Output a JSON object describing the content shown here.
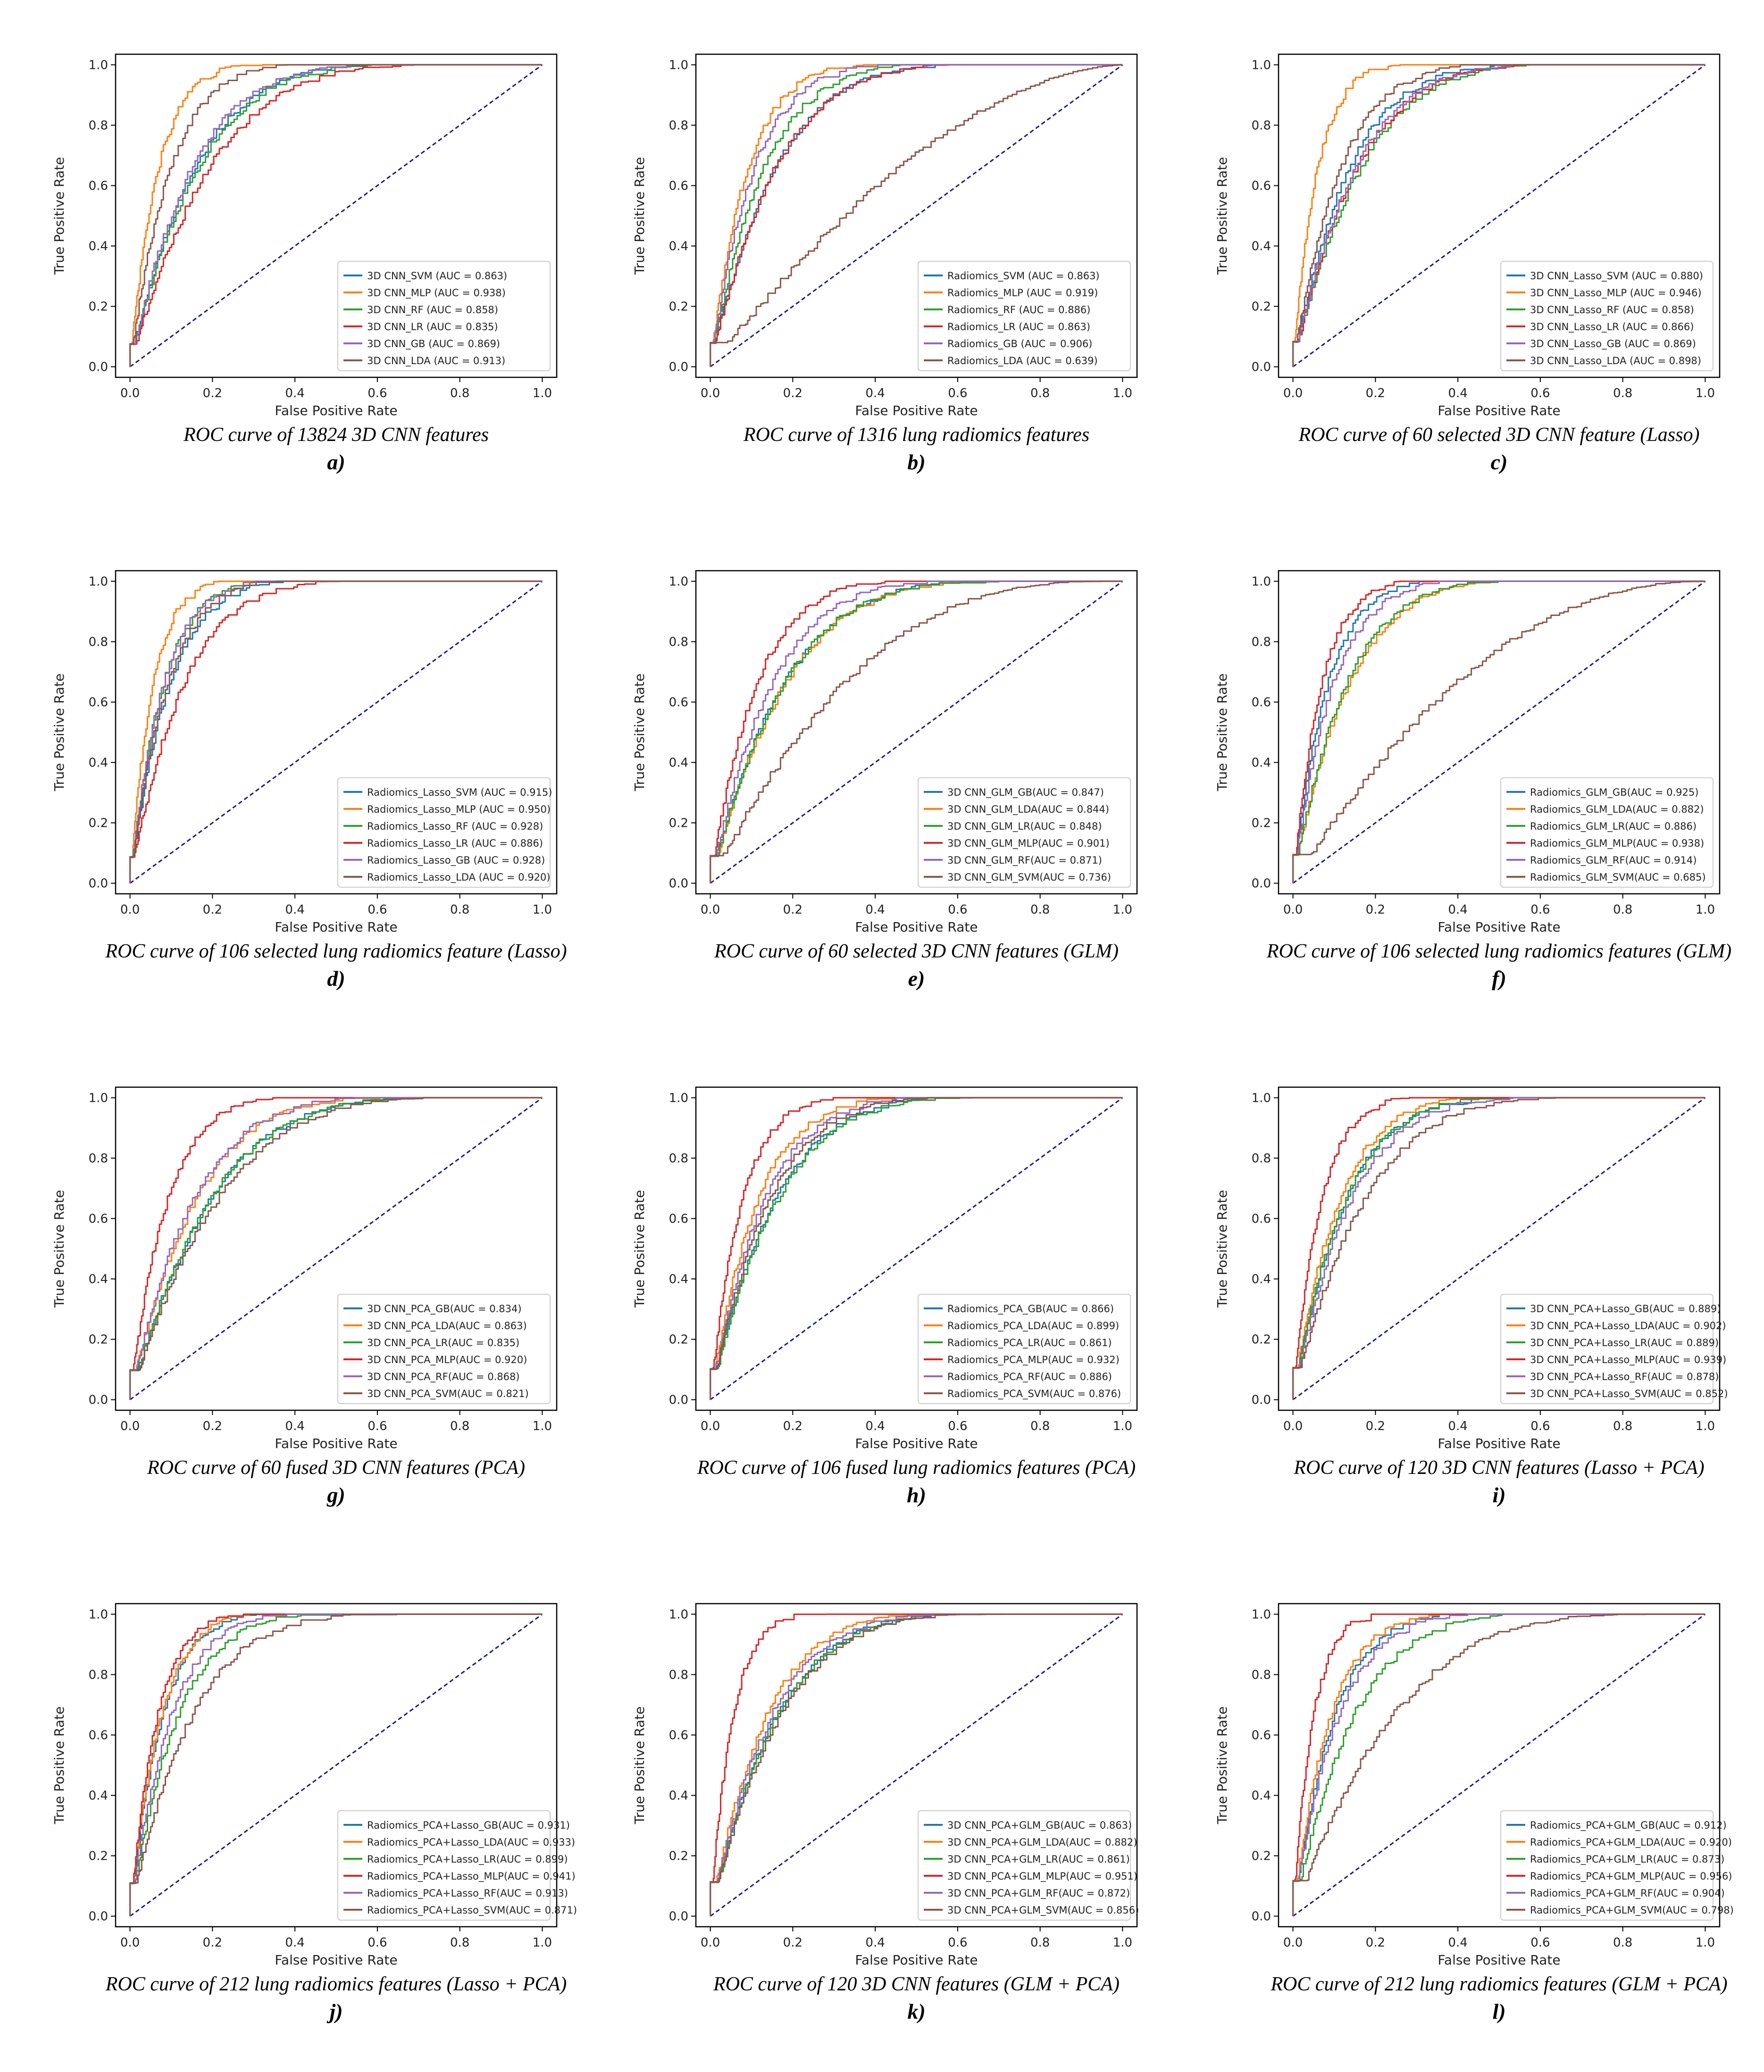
{
  "colors": {
    "blue": "#1f77b4",
    "orange": "#ff7f0e",
    "green": "#2ca02c",
    "red": "#d62728",
    "purple": "#9467bd",
    "brown": "#8c564b",
    "diagonal": "#1a1a8c"
  },
  "axis_common": {
    "xlabel": "False Positive Rate",
    "ylabel": "True Positive Rate",
    "ticks": [
      "0.0",
      "0.2",
      "0.4",
      "0.6",
      "0.8",
      "1.0"
    ],
    "xlim": [
      0,
      1
    ],
    "ylim": [
      0,
      1
    ]
  },
  "chart_data": [
    {
      "type": "line",
      "panel": "a)",
      "caption": "ROC curve of 13824 3D CNN features",
      "series": [
        {
          "name": "3D CNN_SVM (AUC = 0.863)",
          "color": "blue",
          "auc": 0.863
        },
        {
          "name": "3D CNN_MLP (AUC = 0.938)",
          "color": "orange",
          "auc": 0.938
        },
        {
          "name": "3D CNN_RF (AUC = 0.858)",
          "color": "green",
          "auc": 0.858
        },
        {
          "name": "3D CNN_LR (AUC = 0.835)",
          "color": "red",
          "auc": 0.835
        },
        {
          "name": "3D CNN_GB (AUC = 0.869)",
          "color": "purple",
          "auc": 0.869
        },
        {
          "name": "3D CNN_LDA (AUC = 0.913)",
          "color": "brown",
          "auc": 0.913
        }
      ]
    },
    {
      "type": "line",
      "panel": "b)",
      "caption": "ROC curve of 1316 lung radiomics features",
      "series": [
        {
          "name": "Radiomics_SVM (AUC = 0.863)",
          "color": "blue",
          "auc": 0.863
        },
        {
          "name": "Radiomics_MLP (AUC = 0.919)",
          "color": "orange",
          "auc": 0.919
        },
        {
          "name": "Radiomics_RF (AUC = 0.886)",
          "color": "green",
          "auc": 0.886
        },
        {
          "name": "Radiomics_LR (AUC = 0.863)",
          "color": "red",
          "auc": 0.863
        },
        {
          "name": "Radiomics_GB (AUC = 0.906)",
          "color": "purple",
          "auc": 0.906
        },
        {
          "name": "Radiomics_LDA (AUC = 0.639)",
          "color": "brown",
          "auc": 0.639
        }
      ]
    },
    {
      "type": "line",
      "panel": "c)",
      "caption": "ROC curve of 60 selected 3D CNN feature (Lasso)",
      "series": [
        {
          "name": "3D CNN_Lasso_SVM (AUC = 0.880)",
          "color": "blue",
          "auc": 0.88
        },
        {
          "name": "3D CNN_Lasso_MLP (AUC = 0.946)",
          "color": "orange",
          "auc": 0.946
        },
        {
          "name": "3D CNN_Lasso_RF (AUC = 0.858)",
          "color": "green",
          "auc": 0.858
        },
        {
          "name": "3D CNN_Lasso_LR (AUC = 0.866)",
          "color": "red",
          "auc": 0.866
        },
        {
          "name": "3D CNN_Lasso_GB (AUC = 0.869)",
          "color": "purple",
          "auc": 0.869
        },
        {
          "name": "3D CNN_Lasso_LDA (AUC = 0.898)",
          "color": "brown",
          "auc": 0.898
        }
      ]
    },
    {
      "type": "line",
      "panel": "d)",
      "caption": "ROC curve of 106 selected lung radiomics feature (Lasso)",
      "series": [
        {
          "name": "Radiomics_Lasso_SVM (AUC = 0.915)",
          "color": "blue",
          "auc": 0.915
        },
        {
          "name": "Radiomics_Lasso_MLP (AUC = 0.950)",
          "color": "orange",
          "auc": 0.95
        },
        {
          "name": "Radiomics_Lasso_RF (AUC = 0.928)",
          "color": "green",
          "auc": 0.928
        },
        {
          "name": "Radiomics_Lasso_LR (AUC = 0.886)",
          "color": "red",
          "auc": 0.886
        },
        {
          "name": "Radiomics_Lasso_GB (AUC = 0.928)",
          "color": "purple",
          "auc": 0.928
        },
        {
          "name": "Radiomics_Lasso_LDA (AUC = 0.920)",
          "color": "brown",
          "auc": 0.92
        }
      ]
    },
    {
      "type": "line",
      "panel": "e)",
      "caption": "ROC curve of 60 selected 3D CNN  features (GLM)",
      "series": [
        {
          "name": "3D CNN_GLM_GB(AUC = 0.847)",
          "color": "blue",
          "auc": 0.847
        },
        {
          "name": "3D CNN_GLM_LDA(AUC = 0.844)",
          "color": "orange",
          "auc": 0.844
        },
        {
          "name": "3D CNN_GLM_LR(AUC = 0.848)",
          "color": "green",
          "auc": 0.848
        },
        {
          "name": "3D CNN_GLM_MLP(AUC = 0.901)",
          "color": "red",
          "auc": 0.901
        },
        {
          "name": "3D CNN_GLM_RF(AUC = 0.871)",
          "color": "purple",
          "auc": 0.871
        },
        {
          "name": "3D CNN_GLM_SVM(AUC = 0.736)",
          "color": "brown",
          "auc": 0.736
        }
      ]
    },
    {
      "type": "line",
      "panel": "f)",
      "caption": "ROC curve of 106 selected lung radiomics  features (GLM)",
      "series": [
        {
          "name": "Radiomics_GLM_GB(AUC = 0.925)",
          "color": "blue",
          "auc": 0.925
        },
        {
          "name": "Radiomics_GLM_LDA(AUC = 0.882)",
          "color": "orange",
          "auc": 0.882
        },
        {
          "name": "Radiomics_GLM_LR(AUC = 0.886)",
          "color": "green",
          "auc": 0.886
        },
        {
          "name": "Radiomics_GLM_MLP(AUC = 0.938)",
          "color": "red",
          "auc": 0.938
        },
        {
          "name": "Radiomics_GLM_RF(AUC = 0.914)",
          "color": "purple",
          "auc": 0.914
        },
        {
          "name": "Radiomics_GLM_SVM(AUC = 0.685)",
          "color": "brown",
          "auc": 0.685
        }
      ]
    },
    {
      "type": "line",
      "panel": "g)",
      "caption": "ROC curve of 60 fused 3D CNN  features (PCA)",
      "series": [
        {
          "name": "3D CNN_PCA_GB(AUC = 0.834)",
          "color": "blue",
          "auc": 0.834
        },
        {
          "name": "3D CNN_PCA_LDA(AUC = 0.863)",
          "color": "orange",
          "auc": 0.863
        },
        {
          "name": "3D CNN_PCA_LR(AUC = 0.835)",
          "color": "green",
          "auc": 0.835
        },
        {
          "name": "3D CNN_PCA_MLP(AUC = 0.920)",
          "color": "red",
          "auc": 0.92
        },
        {
          "name": "3D CNN_PCA_RF(AUC = 0.868)",
          "color": "purple",
          "auc": 0.868
        },
        {
          "name": "3D CNN_PCA_SVM(AUC = 0.821)",
          "color": "brown",
          "auc": 0.821
        }
      ]
    },
    {
      "type": "line",
      "panel": "h)",
      "caption": "ROC curve of 106 fused lung radiomics  features (PCA)",
      "series": [
        {
          "name": "Radiomics_PCA_GB(AUC = 0.866)",
          "color": "blue",
          "auc": 0.866
        },
        {
          "name": "Radiomics_PCA_LDA(AUC = 0.899)",
          "color": "orange",
          "auc": 0.899
        },
        {
          "name": "Radiomics_PCA_LR(AUC = 0.861)",
          "color": "green",
          "auc": 0.861
        },
        {
          "name": "Radiomics_PCA_MLP(AUC = 0.932)",
          "color": "red",
          "auc": 0.932
        },
        {
          "name": "Radiomics_PCA_RF(AUC = 0.886)",
          "color": "purple",
          "auc": 0.886
        },
        {
          "name": "Radiomics_PCA_SVM(AUC = 0.876)",
          "color": "brown",
          "auc": 0.876
        }
      ]
    },
    {
      "type": "line",
      "panel": "i)",
      "caption": "ROC curve of 120 3D CNN  features (Lasso + PCA)",
      "series": [
        {
          "name": "3D CNN_PCA+Lasso_GB(AUC = 0.889)",
          "color": "blue",
          "auc": 0.889
        },
        {
          "name": "3D CNN_PCA+Lasso_LDA(AUC = 0.902)",
          "color": "orange",
          "auc": 0.902
        },
        {
          "name": "3D CNN_PCA+Lasso_LR(AUC = 0.889)",
          "color": "green",
          "auc": 0.889
        },
        {
          "name": "3D CNN_PCA+Lasso_MLP(AUC = 0.939)",
          "color": "red",
          "auc": 0.939
        },
        {
          "name": "3D CNN_PCA+Lasso_RF(AUC = 0.878)",
          "color": "purple",
          "auc": 0.878
        },
        {
          "name": "3D CNN_PCA+Lasso_SVM(AUC = 0.852)",
          "color": "brown",
          "auc": 0.852
        }
      ]
    },
    {
      "type": "line",
      "panel": "j)",
      "caption": "ROC curve of 212 lung radiomics  features (Lasso + PCA)",
      "series": [
        {
          "name": "Radiomics_PCA+Lasso_GB(AUC = 0.931)",
          "color": "blue",
          "auc": 0.931
        },
        {
          "name": "Radiomics_PCA+Lasso_LDA(AUC = 0.933)",
          "color": "orange",
          "auc": 0.933
        },
        {
          "name": "Radiomics_PCA+Lasso_LR(AUC = 0.899)",
          "color": "green",
          "auc": 0.899
        },
        {
          "name": "Radiomics_PCA+Lasso_MLP(AUC = 0.941)",
          "color": "red",
          "auc": 0.941
        },
        {
          "name": "Radiomics_PCA+Lasso_RF(AUC = 0.913)",
          "color": "purple",
          "auc": 0.913
        },
        {
          "name": "Radiomics_PCA+Lasso_SVM(AUC = 0.871)",
          "color": "brown",
          "auc": 0.871
        }
      ]
    },
    {
      "type": "line",
      "panel": "k)",
      "caption": "ROC curve of 120 3D CNN  features (GLM + PCA)",
      "series": [
        {
          "name": "3D CNN_PCA+GLM_GB(AUC = 0.863)",
          "color": "blue",
          "auc": 0.863
        },
        {
          "name": "3D CNN_PCA+GLM_LDA(AUC = 0.882)",
          "color": "orange",
          "auc": 0.882
        },
        {
          "name": "3D CNN_PCA+GLM_LR(AUC = 0.861)",
          "color": "green",
          "auc": 0.861
        },
        {
          "name": "3D CNN_PCA+GLM_MLP(AUC = 0.951)",
          "color": "red",
          "auc": 0.951
        },
        {
          "name": "3D CNN_PCA+GLM_RF(AUC = 0.872)",
          "color": "purple",
          "auc": 0.872
        },
        {
          "name": "3D CNN_PCA+GLM_SVM(AUC = 0.856)",
          "color": "brown",
          "auc": 0.856
        }
      ]
    },
    {
      "type": "line",
      "panel": "l)",
      "caption": "ROC curve of 212 lung radiomics  features (GLM + PCA)",
      "series": [
        {
          "name": "Radiomics_PCA+GLM_GB(AUC = 0.912)",
          "color": "blue",
          "auc": 0.912
        },
        {
          "name": "Radiomics_PCA+GLM_LDA(AUC = 0.920)",
          "color": "orange",
          "auc": 0.92
        },
        {
          "name": "Radiomics_PCA+GLM_LR(AUC = 0.873)",
          "color": "green",
          "auc": 0.873
        },
        {
          "name": "Radiomics_PCA+GLM_MLP(AUC = 0.956)",
          "color": "red",
          "auc": 0.956
        },
        {
          "name": "Radiomics_PCA+GLM_RF(AUC = 0.904)",
          "color": "purple",
          "auc": 0.904
        },
        {
          "name": "Radiomics_PCA+GLM_SVM(AUC = 0.798)",
          "color": "brown",
          "auc": 0.798
        }
      ]
    }
  ]
}
